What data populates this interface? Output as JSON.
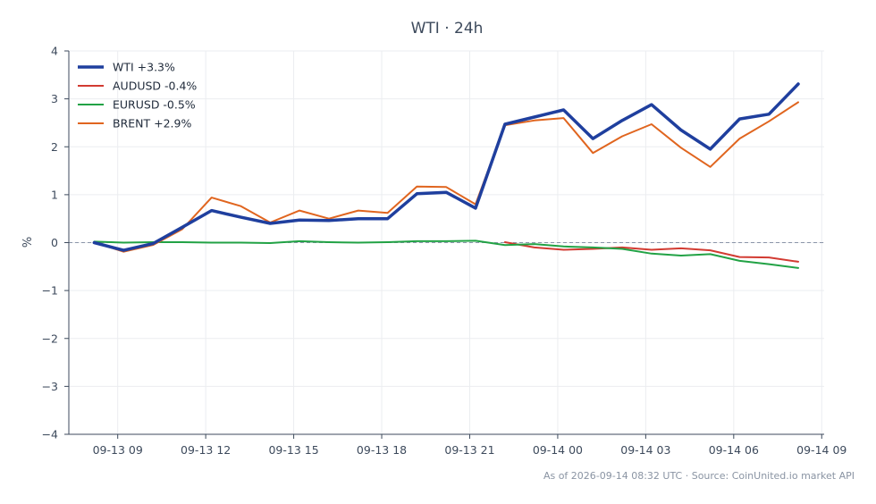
{
  "chart_data": {
    "type": "line",
    "title": "WTI · 24h",
    "xlabel": "",
    "ylabel": "%",
    "ylim": [
      -4,
      4
    ],
    "yticks": [
      4,
      3,
      2,
      1,
      0,
      -1,
      -2,
      -3,
      -4
    ],
    "ytick_labels": [
      "4",
      "3",
      "2",
      "1",
      "0",
      "−1",
      "−2",
      "−3",
      "−4"
    ],
    "xlim": [
      "2026-09-13 07:20",
      "2026-09-14 09:05"
    ],
    "xticks": [
      "2026-09-13 09:00",
      "2026-09-13 12:00",
      "2026-09-13 15:00",
      "2026-09-13 18:00",
      "2026-09-13 21:00",
      "2026-09-14 00:00",
      "2026-09-14 03:00",
      "2026-09-14 06:00",
      "2026-09-14 09:00"
    ],
    "xtick_labels": [
      "09-13 09",
      "09-13 12",
      "09-13 15",
      "09-13 18",
      "09-13 21",
      "09-14 00",
      "09-14 03",
      "09-14 06",
      "09-14 09"
    ],
    "x": [
      "2026-09-13 08:12",
      "2026-09-13 09:12",
      "2026-09-13 10:12",
      "2026-09-13 11:12",
      "2026-09-13 12:12",
      "2026-09-13 13:12",
      "2026-09-13 14:12",
      "2026-09-13 15:12",
      "2026-09-13 16:12",
      "2026-09-13 17:12",
      "2026-09-13 18:12",
      "2026-09-13 19:12",
      "2026-09-13 20:12",
      "2026-09-13 21:12",
      "2026-09-13 22:12",
      "2026-09-13 23:12",
      "2026-09-14 00:12",
      "2026-09-14 01:12",
      "2026-09-14 02:12",
      "2026-09-14 03:12",
      "2026-09-14 04:12",
      "2026-09-14 05:12",
      "2026-09-14 06:12",
      "2026-09-14 07:12",
      "2026-09-14 08:12"
    ],
    "zero_line": true,
    "grid": true,
    "legend_position": "top-left",
    "series": [
      {
        "name": "WTI +3.3%",
        "color": "#1f3f9e",
        "width": 3.5,
        "values": [
          0.0,
          -0.16,
          -0.02,
          0.32,
          0.67,
          0.53,
          0.4,
          0.47,
          0.46,
          0.5,
          0.5,
          1.02,
          1.05,
          0.72,
          2.47,
          2.62,
          2.77,
          2.17,
          2.55,
          2.88,
          2.35,
          1.95,
          2.58,
          2.68,
          3.31
        ]
      },
      {
        "name": "AUDUSD -0.4%",
        "color": "#d23b32",
        "width": 2,
        "values": [
          null,
          null,
          null,
          null,
          null,
          null,
          null,
          null,
          null,
          null,
          null,
          null,
          null,
          null,
          0.01,
          -0.1,
          -0.15,
          -0.13,
          -0.1,
          -0.15,
          -0.12,
          -0.16,
          -0.3,
          -0.31,
          -0.4
        ]
      },
      {
        "name": "EURUSD -0.5%",
        "color": "#22a245",
        "width": 2,
        "values": [
          0.02,
          0.0,
          0.01,
          0.01,
          0.0,
          0.0,
          -0.01,
          0.03,
          0.01,
          0.0,
          0.01,
          0.03,
          0.03,
          0.04,
          -0.05,
          -0.03,
          -0.08,
          -0.1,
          -0.13,
          -0.23,
          -0.27,
          -0.24,
          -0.38,
          -0.45,
          -0.53
        ]
      },
      {
        "name": "BRENT +2.9%",
        "color": "#e0651f",
        "width": 2,
        "values": [
          0.01,
          -0.19,
          -0.05,
          0.28,
          0.94,
          0.76,
          0.42,
          0.67,
          0.5,
          0.67,
          0.62,
          1.17,
          1.16,
          0.8,
          2.45,
          2.55,
          2.6,
          1.87,
          2.22,
          2.47,
          1.98,
          1.58,
          2.17,
          2.53,
          2.93
        ]
      }
    ]
  },
  "footer": "As of 2026-09-14 08:32 UTC · Source: CoinUnited.io market API"
}
